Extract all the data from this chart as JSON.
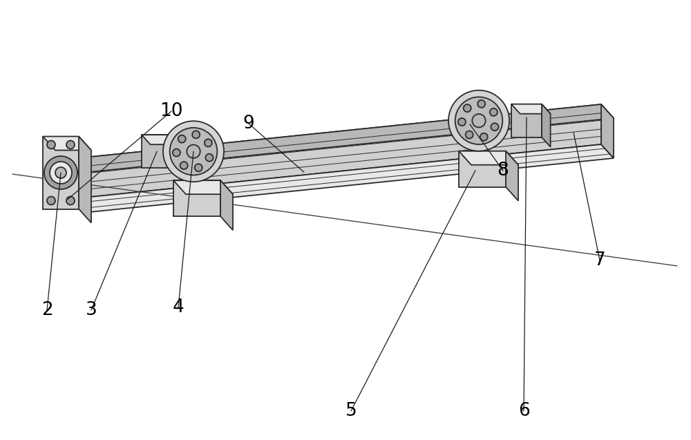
{
  "bg_color": "#ffffff",
  "line_color": "#2a2a2a",
  "lw_main": 1.3,
  "lw_thin": 0.7,
  "lw_leader": 0.9,
  "fig_width": 10.0,
  "fig_height": 6.37,
  "label_fontsize": 19,
  "leader_color": "#1a1a1a",
  "fc_light": "#e8e8e8",
  "fc_mid": "#d0d0d0",
  "fc_dark": "#b8b8b8",
  "fc_darker": "#a0a0a0",
  "fc_wheel": "#d4d4d4",
  "fc_wheel_inner": "#bcbcbc",
  "fc_motor": "#c0c0c0",
  "fc_motor_dark": "#a8a8a8"
}
